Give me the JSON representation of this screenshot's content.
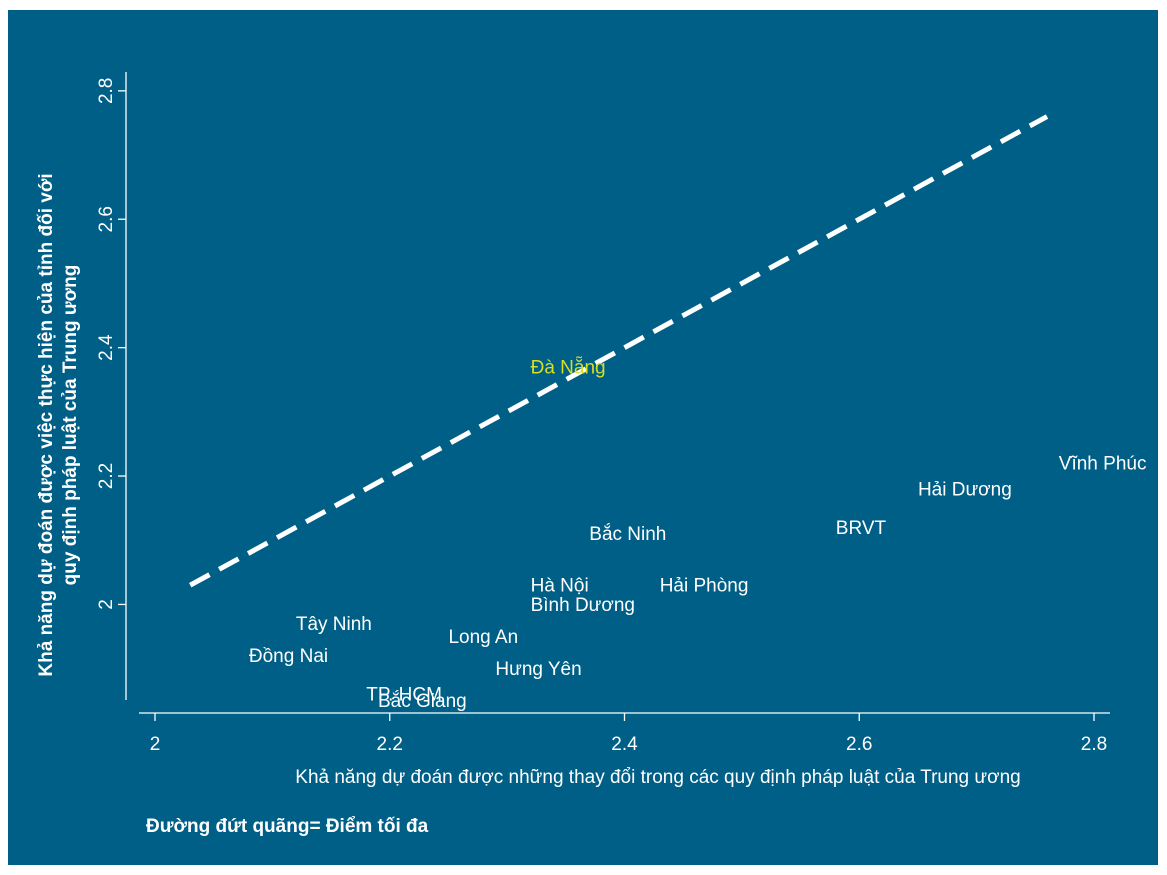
{
  "colors": {
    "background": "#005f87",
    "label": "#ffffff",
    "highlight": "#d7df23",
    "line": "#ffffff"
  },
  "note": "Đường đứt quãng= Điểm tối đa",
  "chart_data": {
    "type": "scatter",
    "xlabel": "Khả năng dự đoán được những thay đổi trong các quy định pháp luật của Trung ương",
    "ylabel_line1": "Khả năng dự đoán được việc thực hiện của tỉnh đối với",
    "ylabel_line2": "quy định pháp luật của Trung ương",
    "xlim": [
      2.0,
      2.8
    ],
    "ylim": [
      1.82,
      2.82
    ],
    "xticks": [
      "2",
      "2.2",
      "2.4",
      "2.6",
      "2.8"
    ],
    "yticks": [
      "2",
      "2.2",
      "2.4",
      "2.6",
      "2.8"
    ],
    "reference_line": {
      "style": "dashed",
      "x": [
        2.03,
        2.76
      ],
      "y": [
        2.03,
        2.76
      ]
    },
    "points": [
      {
        "label": "Vĩnh Phúc",
        "x": 2.77,
        "y": 2.21,
        "highlight": false
      },
      {
        "label": "Hải Dương",
        "x": 2.65,
        "y": 2.17,
        "highlight": false
      },
      {
        "label": "BRVT",
        "x": 2.58,
        "y": 2.11,
        "highlight": false
      },
      {
        "label": "Bắc Ninh",
        "x": 2.37,
        "y": 2.1,
        "highlight": false
      },
      {
        "label": "Hải Phòng",
        "x": 2.43,
        "y": 2.02,
        "highlight": false
      },
      {
        "label": "Hà Nội",
        "x": 2.32,
        "y": 2.02,
        "highlight": false
      },
      {
        "label": "Bình Dương",
        "x": 2.32,
        "y": 1.99,
        "highlight": false
      },
      {
        "label": "Long An",
        "x": 2.25,
        "y": 1.94,
        "highlight": false
      },
      {
        "label": "Tây Ninh",
        "x": 2.12,
        "y": 1.96,
        "highlight": false
      },
      {
        "label": "Đồng Nai",
        "x": 2.08,
        "y": 1.91,
        "highlight": false
      },
      {
        "label": "Hưng Yên",
        "x": 2.29,
        "y": 1.89,
        "highlight": false
      },
      {
        "label": "TP. HCM",
        "x": 2.18,
        "y": 1.85,
        "highlight": false
      },
      {
        "label": "Bắc Giang",
        "x": 2.19,
        "y": 1.84,
        "highlight": false
      },
      {
        "label": "Đà Nẵng",
        "x": 2.32,
        "y": 2.36,
        "highlight": true
      }
    ]
  }
}
